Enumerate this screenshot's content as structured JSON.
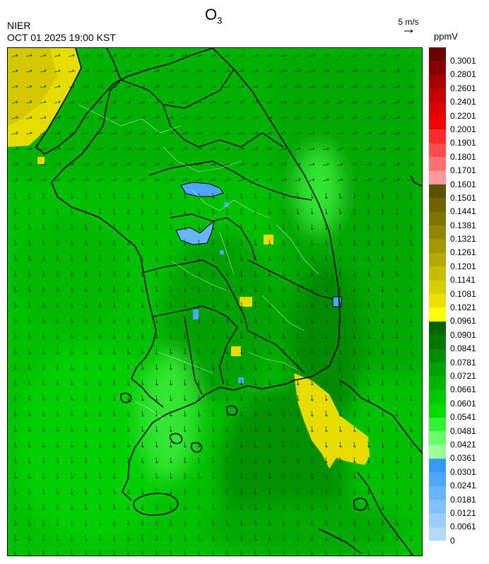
{
  "header": {
    "agency": "NIER",
    "datetime": "OCT 01 2025 19:00 KST",
    "title_main": "O",
    "title_sub": "3",
    "wind_ref": "5 m/s",
    "unit": "ppmV"
  },
  "legend": {
    "colors": [
      "#6b0000",
      "#8a0000",
      "#a80000",
      "#c40000",
      "#de0000",
      "#f20000",
      "#ff2a2a",
      "#ff4d4d",
      "#ff7070",
      "#ff9a9a",
      "#5c5200",
      "#6e6300",
      "#807400",
      "#928600",
      "#a49800",
      "#b6aa00",
      "#c8bc00",
      "#dacd00",
      "#ece000",
      "#ffff00",
      "#006400",
      "#007800",
      "#008c00",
      "#00a000",
      "#00b400",
      "#00c800",
      "#00dc00",
      "#33f033",
      "#66ff66",
      "#99ff99",
      "#3399ff",
      "#4da6ff",
      "#66b3ff",
      "#80c0ff",
      "#99ccff",
      "#b3d9ff"
    ],
    "labels": [
      "0.3001",
      "0.2801",
      "0.2601",
      "0.2401",
      "0.2201",
      "0.2001",
      "0.1901",
      "0.1801",
      "0.1701",
      "0.1601",
      "0.1501",
      "0.1441",
      "0.1381",
      "0.1321",
      "0.1261",
      "0.1201",
      "0.1141",
      "0.1081",
      "0.1021",
      "0.0961",
      "0.0901",
      "0.0841",
      "0.0781",
      "0.0721",
      "0.0661",
      "0.0601",
      "0.0541",
      "0.0481",
      "0.0421",
      "0.0361",
      "0.0301",
      "0.0241",
      "0.0181",
      "0.0121",
      "0.0061",
      "0"
    ]
  }
}
